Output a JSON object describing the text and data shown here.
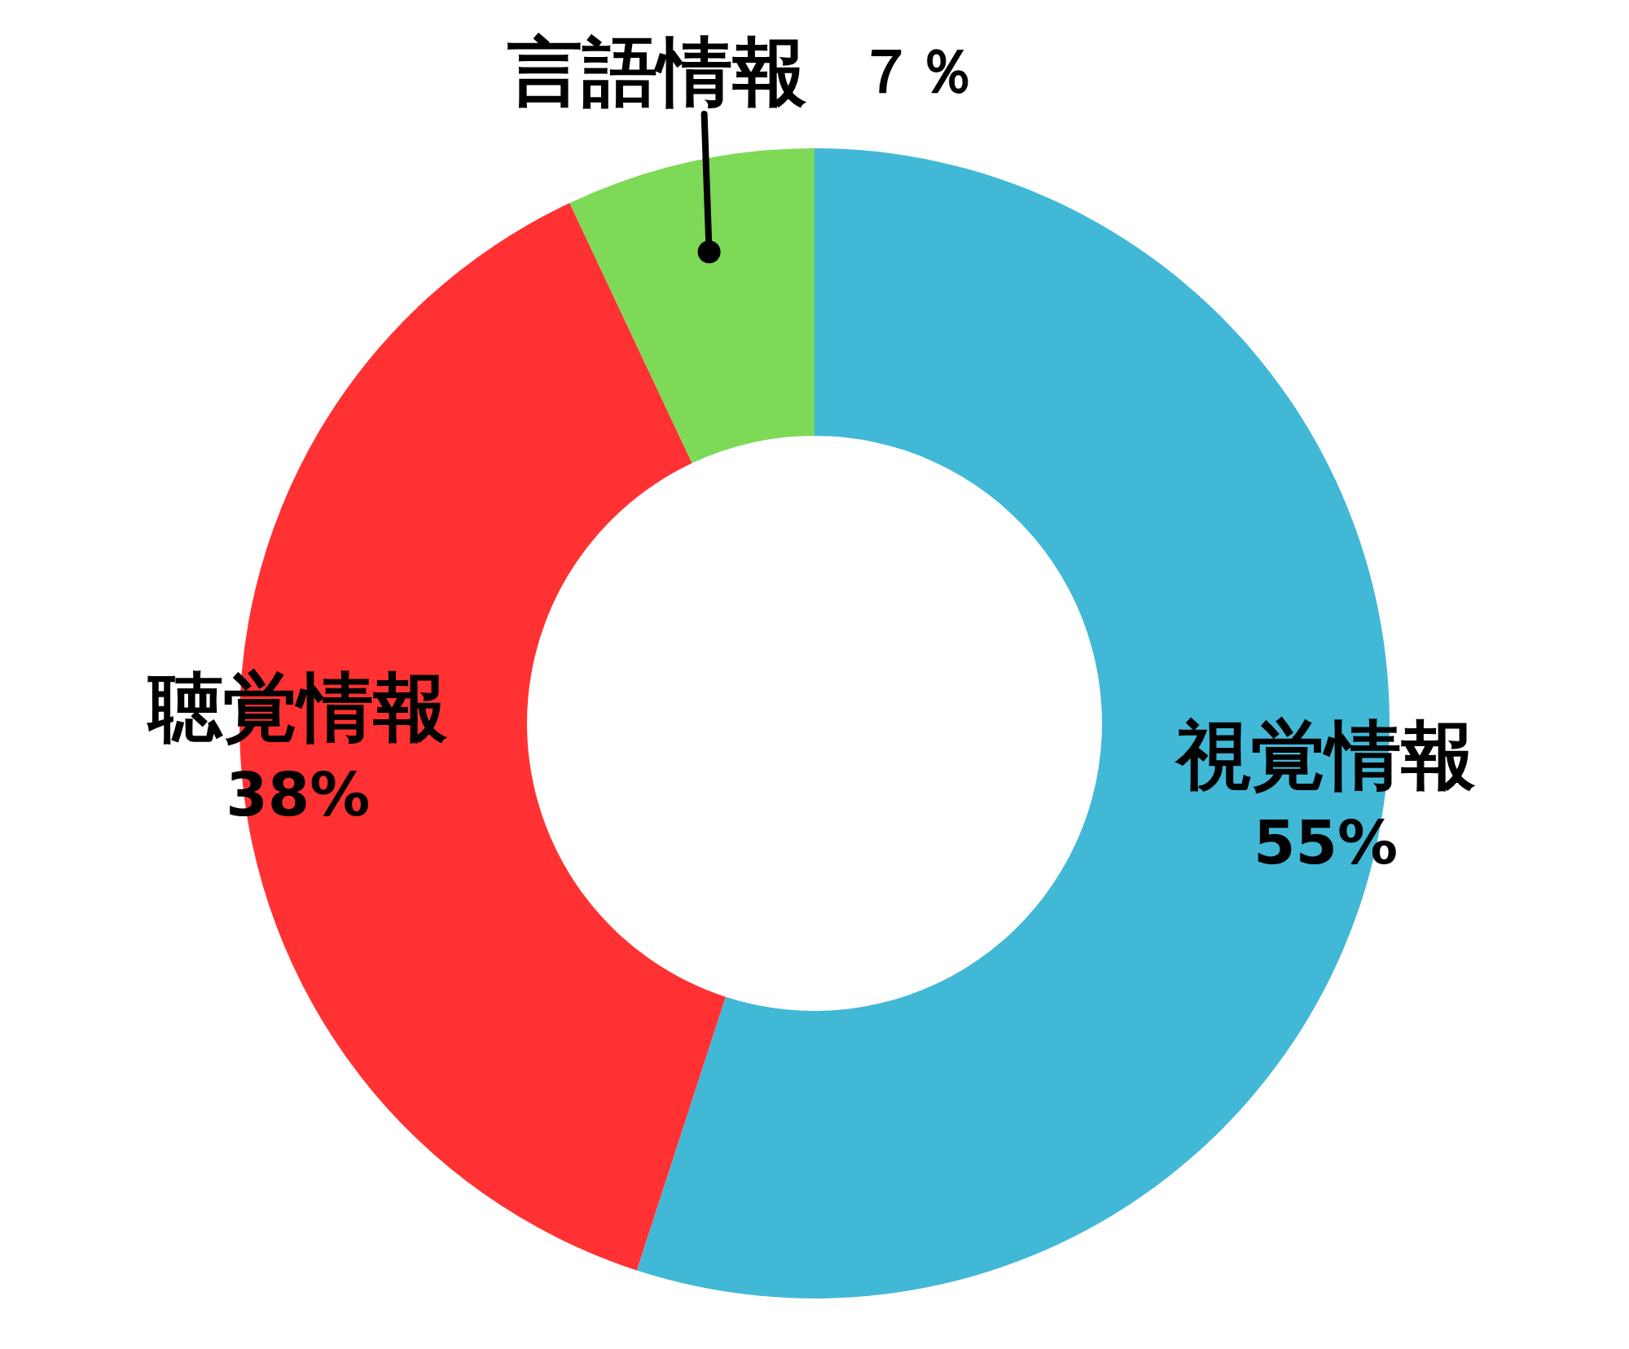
{
  "chart_data": {
    "type": "donut",
    "categories": [
      "視覚情報",
      "聴覚情報",
      "言語情報"
    ],
    "values": [
      55,
      38,
      7
    ],
    "colors": [
      "#42b8d7",
      "#ff3132",
      "#7ed957"
    ],
    "value_labels": [
      "55%",
      "38%",
      "７％"
    ]
  }
}
